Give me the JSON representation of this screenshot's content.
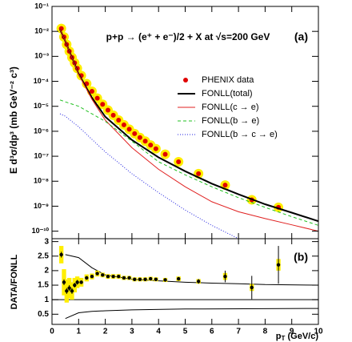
{
  "chart_data": [
    {
      "type": "scatter",
      "title": "p+p → (e⁺ + e⁻)/2 + X at √s=200 GeV",
      "panel_label": "(a)",
      "y_label": "E d³σ/dp³ (mb GeV⁻² c³)",
      "xlim": [
        0,
        10
      ],
      "xticks": [
        0,
        1,
        2,
        3,
        4,
        5,
        6,
        7,
        8,
        9,
        10
      ],
      "ylim": [
        5e-11,
        0.1
      ],
      "log_y": true,
      "yticks": [
        {
          "value": 1e-10,
          "label": "10⁻¹⁰"
        },
        {
          "value": 1e-09,
          "label": "10⁻⁹"
        },
        {
          "value": 1e-08,
          "label": "10⁻⁸"
        },
        {
          "value": 1e-07,
          "label": "10⁻⁷"
        },
        {
          "value": 1e-06,
          "label": "10⁻⁶"
        },
        {
          "value": 1e-05,
          "label": "10⁻⁵"
        },
        {
          "value": 0.0001,
          "label": "10⁻⁴"
        },
        {
          "value": 0.001,
          "label": "10⁻³"
        },
        {
          "value": 0.01,
          "label": "10⁻²"
        },
        {
          "value": 0.1,
          "label": "10⁻¹"
        }
      ],
      "legend": "upper right",
      "series": [
        {
          "name": "PHENIX data",
          "color": "#e00000",
          "style": "points",
          "x": [
            0.35,
            0.45,
            0.55,
            0.65,
            0.75,
            0.85,
            0.95,
            1.1,
            1.3,
            1.5,
            1.7,
            1.9,
            2.1,
            2.3,
            2.5,
            2.7,
            2.9,
            3.1,
            3.3,
            3.5,
            3.7,
            3.9,
            4.25,
            4.75,
            5.5,
            6.5,
            7.5,
            8.5
          ],
          "values": [
            0.013,
            0.006,
            0.003,
            0.0016,
            0.0009,
            0.00055,
            0.00033,
            0.00017,
            8e-05,
            4e-05,
            2.1e-05,
            1.2e-05,
            7e-06,
            4.4e-06,
            2.8e-06,
            1.8e-06,
            1.2e-06,
            8e-07,
            5.6e-07,
            4e-07,
            2.8e-07,
            2e-07,
            1.2e-07,
            6e-08,
            2e-08,
            7e-09,
            1.8e-09,
            9e-10
          ]
        },
        {
          "name": "FONLL(total)",
          "color": "#000000",
          "style": "solid",
          "x": [
            0.3,
            0.5,
            1,
            1.5,
            2,
            3,
            4,
            5,
            6,
            7,
            8,
            9,
            10
          ],
          "values": [
            0.012,
            0.004,
            0.0002,
            2.2e-05,
            3.8e-06,
            4.5e-07,
            9e-08,
            2.5e-08,
            8e-09,
            3e-09,
            1.2e-09,
            5.5e-10,
            2.5e-10
          ]
        },
        {
          "name": "FONLL(c → e)",
          "color": "#e02020",
          "style": "solid-thin",
          "x": [
            0.3,
            0.5,
            1,
            1.5,
            2,
            3,
            4,
            5,
            6,
            7,
            8,
            9,
            10
          ],
          "values": [
            0.012,
            0.004,
            0.00019,
            1.9e-05,
            2.8e-06,
            2.2e-07,
            3e-08,
            6e-09,
            1.5e-09,
            6e-10,
            3.2e-10,
            1.8e-10,
            1e-10
          ]
        },
        {
          "name": "FONLL(b → e)",
          "color": "#20c020",
          "style": "dashed",
          "x": [
            0.3,
            0.5,
            1,
            2,
            3,
            4,
            5,
            6,
            7,
            8,
            9,
            10
          ],
          "values": [
            1.8e-05,
            1.5e-05,
            1e-05,
            2.5e-06,
            4e-07,
            6e-08,
            1.8e-08,
            6e-09,
            2.2e-09,
            9e-10,
            3.8e-10,
            1.7e-10
          ]
        },
        {
          "name": "FONLL(b → c → e)",
          "color": "#2020e0",
          "style": "dotted",
          "x": [
            0.3,
            0.5,
            1,
            2,
            3,
            4,
            5,
            6,
            7
          ],
          "values": [
            5e-06,
            4e-06,
            1.5e-06,
            1.5e-07,
            2e-08,
            3.5e-09,
            7e-10,
            1.7e-10,
            5e-11
          ]
        }
      ]
    },
    {
      "type": "scatter",
      "panel_label": "(b)",
      "y_label": "DATA/FONLL",
      "x_label": [
        "p",
        "T",
        " (GeV/c)"
      ],
      "xlim": [
        0,
        10
      ],
      "xticks": [
        0,
        1,
        2,
        3,
        4,
        5,
        6,
        7,
        8,
        9,
        10
      ],
      "ylim": [
        0.15,
        3.1
      ],
      "yticks": [
        0.5,
        1,
        1.5,
        2,
        2.5,
        3
      ],
      "reference": 1,
      "data": {
        "color": "#000000",
        "sys_color": "#ffee00",
        "x": [
          0.35,
          0.45,
          0.55,
          0.65,
          0.75,
          0.85,
          0.95,
          1.1,
          1.3,
          1.5,
          1.7,
          1.9,
          2.1,
          2.3,
          2.5,
          2.7,
          2.9,
          3.1,
          3.3,
          3.5,
          3.7,
          3.9,
          4.25,
          4.75,
          5.5,
          6.5,
          7.5,
          8.5
        ],
        "values": [
          2.55,
          1.6,
          1.3,
          1.4,
          1.3,
          1.5,
          1.6,
          1.6,
          1.75,
          1.8,
          1.9,
          1.85,
          1.8,
          1.8,
          1.8,
          1.75,
          1.75,
          1.7,
          1.7,
          1.7,
          1.72,
          1.7,
          1.68,
          1.72,
          1.63,
          1.8,
          1.42,
          2.2
        ],
        "errors": [
          0.1,
          0.1,
          0.1,
          0.1,
          0.1,
          0.08,
          0.08,
          0.06,
          0.06,
          0.05,
          0.05,
          0.05,
          0.05,
          0.05,
          0.05,
          0.05,
          0.05,
          0.05,
          0.05,
          0.05,
          0.05,
          0.05,
          0.05,
          0.06,
          0.08,
          0.2,
          0.4,
          0.65
        ],
        "sys": [
          0.3,
          0.45,
          0.4,
          0.35,
          0.3,
          0.25,
          0.2,
          0.15,
          0.12,
          0.1,
          0.1,
          0.08,
          0.08,
          0.08,
          0.08,
          0.07,
          0.07,
          0.07,
          0.07,
          0.07,
          0.07,
          0.07,
          0.07,
          0.08,
          0.08,
          0.12,
          0.12,
          0.2
        ]
      },
      "band_upper": {
        "color": "#000000",
        "x": [
          0.5,
          1,
          1.5,
          2,
          3,
          4,
          5,
          6,
          7,
          8,
          10
        ],
        "values": [
          2.55,
          2.45,
          2.1,
          1.85,
          1.7,
          1.65,
          1.6,
          1.57,
          1.55,
          1.52,
          1.5
        ]
      },
      "band_lower": {
        "color": "#000000",
        "x": [
          0.5,
          1,
          1.5,
          2,
          3,
          5,
          10
        ],
        "values": [
          0.35,
          0.55,
          0.6,
          0.62,
          0.65,
          0.68,
          0.7
        ]
      }
    }
  ]
}
